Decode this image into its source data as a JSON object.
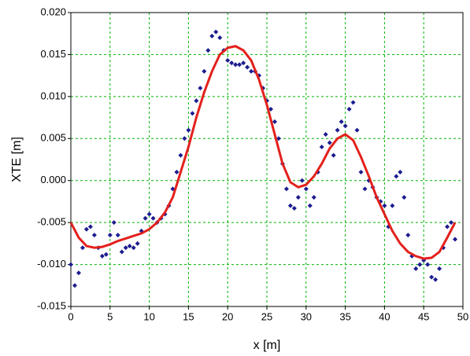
{
  "chart_data": {
    "type": "scatter",
    "xlabel": "x [m]",
    "ylabel": "XTE [m]",
    "xlim": [
      0,
      50
    ],
    "xticks": [
      0,
      5,
      10,
      15,
      20,
      25,
      30,
      35,
      40,
      45,
      50
    ],
    "ylim": [
      -0.015,
      0.02
    ],
    "yticks": [
      {
        "value": -0.015,
        "label": "-0.015"
      },
      {
        "value": -0.01,
        "label": "-0.010"
      },
      {
        "value": -0.005,
        "label": "-0.005"
      },
      {
        "value": 0,
        "label": "0.000"
      },
      {
        "value": 0.005,
        "label": "0.005"
      },
      {
        "value": 0.01,
        "label": "0.010"
      },
      {
        "value": 0.015,
        "label": "0.015"
      },
      {
        "value": 0.02,
        "label": "0.020"
      }
    ],
    "grid": true,
    "grid_color": "#00b400",
    "series": [
      {
        "style": "markers",
        "color": "#1c1c8f",
        "x": [
          0,
          0.5,
          1,
          1.5,
          2,
          2.5,
          3,
          3.5,
          4,
          4.5,
          5,
          5.5,
          6,
          6.5,
          7,
          7.5,
          8,
          8.5,
          9,
          9.5,
          10,
          10.5,
          11,
          11.5,
          12,
          12.5,
          13,
          13.5,
          14,
          14.5,
          15,
          15.5,
          16,
          16.5,
          17,
          17.5,
          18,
          18.5,
          19,
          19.5,
          20,
          20.5,
          21,
          21.5,
          22,
          22.5,
          23,
          23.5,
          24,
          24.5,
          25,
          25.5,
          26,
          26.5,
          27,
          27.5,
          28,
          28.5,
          29,
          29.5,
          30,
          30.5,
          31,
          31.5,
          32,
          32.5,
          33,
          33.5,
          34,
          34.5,
          35,
          35.5,
          36,
          36.5,
          37,
          37.5,
          38,
          38.5,
          39,
          39.5,
          40,
          40.5,
          41,
          41.5,
          42,
          42.5,
          43,
          43.5,
          44,
          44.5,
          45,
          45.5,
          46,
          46.5,
          47,
          47.5,
          48,
          48.5,
          49
        ],
        "values": [
          -0.01,
          -0.0125,
          -0.011,
          -0.008,
          -0.0058,
          -0.0055,
          -0.0065,
          -0.008,
          -0.009,
          -0.0088,
          -0.0065,
          -0.005,
          -0.0065,
          -0.0085,
          -0.008,
          -0.0078,
          -0.008,
          -0.0075,
          -0.006,
          -0.0045,
          -0.004,
          -0.0045,
          -0.005,
          -0.0045,
          -0.004,
          -0.003,
          -0.001,
          0.001,
          0.003,
          0.005,
          0.006,
          0.008,
          0.0095,
          0.011,
          0.013,
          0.0155,
          0.0172,
          0.0177,
          0.017,
          0.0155,
          0.0143,
          0.014,
          0.0138,
          0.0138,
          0.014,
          0.0135,
          0.013,
          0.013,
          0.0125,
          0.011,
          0.0095,
          0.0085,
          0.007,
          0.005,
          0.002,
          -0.001,
          -0.003,
          -0.0033,
          -0.002,
          0,
          -0.001,
          -0.003,
          -0.002,
          0.001,
          0.004,
          0.0055,
          0.0045,
          0.003,
          0.006,
          0.007,
          0.0065,
          0.0085,
          0.0093,
          0.006,
          0.001,
          -0.001,
          0,
          -0.0008,
          -0.002,
          -0.0025,
          -0.003,
          -0.0055,
          -0.003,
          0.0005,
          0.001,
          -0.002,
          -0.0065,
          -0.009,
          -0.0105,
          -0.01,
          -0.0095,
          -0.01,
          -0.0115,
          -0.0118,
          -0.0105,
          -0.008,
          -0.0055,
          -0.005,
          -0.007
        ]
      },
      {
        "style": "line",
        "color": "#e3201c",
        "x": [
          0,
          1,
          2,
          3,
          4,
          5,
          6,
          7,
          8,
          9,
          10,
          11,
          12,
          13,
          14,
          15,
          16,
          17,
          18,
          19,
          20,
          21,
          22,
          23,
          24,
          25,
          26,
          27,
          28,
          29,
          30,
          31,
          32,
          33,
          34,
          35,
          36,
          37,
          38,
          39,
          40,
          41,
          42,
          43,
          44,
          45,
          46,
          47,
          48,
          49
        ],
        "values": [
          -0.005,
          -0.0068,
          -0.0078,
          -0.008,
          -0.0079,
          -0.0076,
          -0.0072,
          -0.0069,
          -0.0066,
          -0.0063,
          -0.0058,
          -0.005,
          -0.0038,
          -0.002,
          0.001,
          0.004,
          0.0075,
          0.0105,
          0.013,
          0.015,
          0.0158,
          0.016,
          0.0155,
          0.0143,
          0.012,
          0.009,
          0.0055,
          0.002,
          -0.0002,
          -0.0008,
          -0.0005,
          0.0005,
          0.002,
          0.0038,
          0.005,
          0.0055,
          0.0048,
          0.0028,
          0.0005,
          -0.002,
          -0.004,
          -0.006,
          -0.0075,
          -0.0085,
          -0.009,
          -0.0093,
          -0.0092,
          -0.0085,
          -0.0068,
          -0.005
        ]
      }
    ]
  }
}
